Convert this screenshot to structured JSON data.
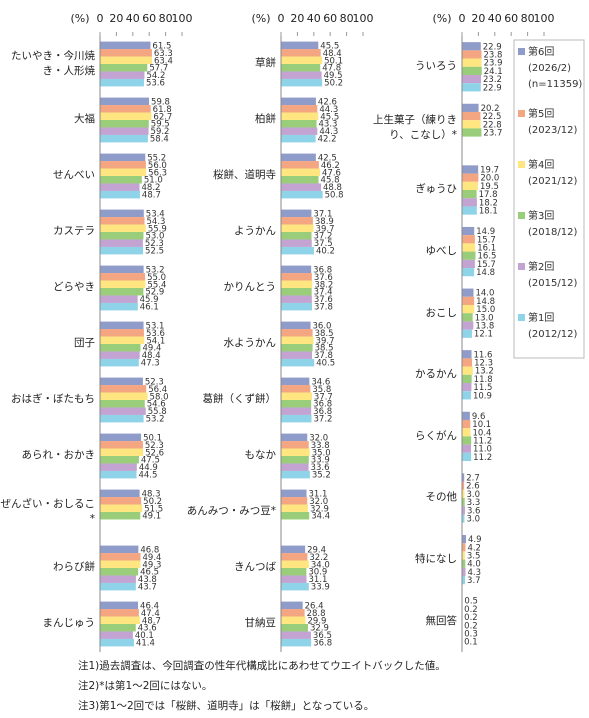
{
  "chart_data": [
    {
      "type": "bar",
      "orientation": "horizontal",
      "unit": "(%)",
      "xlim": [
        0,
        100
      ],
      "xticks": [
        0,
        20,
        40,
        60,
        80,
        100
      ],
      "categories": [
        "たいやき・今川焼き・人形焼",
        "大福",
        "せんべい",
        "カステラ",
        "どらやき",
        "団子",
        "おはぎ・ぼたもち",
        "あられ・おかき",
        "ぜんざい・おしるこ*",
        "わらび餅",
        "まんじゅう"
      ],
      "series": [
        {
          "color": "#8f9bc8",
          "values": [
            61.5,
            59.8,
            55.2,
            53.4,
            53.2,
            53.1,
            52.3,
            50.1,
            48.3,
            46.8,
            46.4
          ],
          "value_labels": [
            "61.5",
            "59.8",
            "55.2",
            "53.4",
            "53.2",
            "53.1",
            "52.3",
            "50.1",
            "48.3",
            "46.8",
            "46.4"
          ]
        },
        {
          "color": "#f4a582",
          "values": [
            63.3,
            61.8,
            56.0,
            54.3,
            55.0,
            53.6,
            56.4,
            52.3,
            50.2,
            49.4,
            47.4
          ],
          "value_labels": [
            "63.3",
            "61.8",
            "56.0",
            "54.3",
            "55.0",
            "53.6",
            "56.4",
            "52.3",
            "50.2",
            "49.4",
            "47.4"
          ]
        },
        {
          "color": "#ffe680",
          "values": [
            63.4,
            62.7,
            56.3,
            55.9,
            55.4,
            54.1,
            58.0,
            52.6,
            51.5,
            49.3,
            48.7
          ],
          "value_labels": [
            "63.4",
            "62.7",
            "56.3",
            "55.9",
            "55.4",
            "54.1",
            "58.0",
            "52.6",
            "51.5",
            "49.3",
            "48.7"
          ]
        },
        {
          "color": "#9acd7a",
          "values": [
            57.7,
            59.5,
            51.0,
            53.0,
            52.9,
            49.4,
            54.6,
            47.5,
            49.1,
            46.5,
            43.6
          ],
          "value_labels": [
            "57.7",
            "59.5",
            "51.0",
            "53.0",
            "52.9",
            "49.4",
            "54.6",
            "47.5",
            "49.1",
            "46.5",
            "43.6"
          ]
        },
        {
          "color": "#c3a3d1",
          "values": [
            54.2,
            59.2,
            48.2,
            52.3,
            45.9,
            48.4,
            55.8,
            44.9,
            null,
            43.8,
            40.1
          ],
          "value_labels": [
            "54.2",
            "59.2",
            "48.2",
            "52.3",
            "45.9",
            "48.4",
            "55.8",
            "44.9",
            null,
            "43.8",
            "40.1"
          ]
        },
        {
          "color": "#8fd3e8",
          "values": [
            53.6,
            58.4,
            48.7,
            52.5,
            46.1,
            47.3,
            53.2,
            44.5,
            null,
            43.7,
            41.4
          ],
          "value_labels": [
            "53.6",
            "58.4",
            "48.7",
            "52.5",
            "46.1",
            "47.3",
            "53.2",
            "44.5",
            null,
            "43.7",
            "41.4"
          ]
        }
      ]
    },
    {
      "type": "bar",
      "orientation": "horizontal",
      "unit": "(%)",
      "xlim": [
        0,
        100
      ],
      "xticks": [
        0,
        20,
        40,
        60,
        80,
        100
      ],
      "categories": [
        "草餅",
        "柏餅",
        "桜餅、道明寺",
        "ようかん",
        "かりんとう",
        "水ようかん",
        "葛餅（くず餅）",
        "もなか",
        "あんみつ・みつ豆*",
        "きんつば",
        "甘納豆"
      ],
      "series": [
        {
          "color": "#8f9bc8",
          "values": [
            45.5,
            42.6,
            42.5,
            37.1,
            36.8,
            36.0,
            34.6,
            32.0,
            31.1,
            29.4,
            26.4
          ],
          "value_labels": [
            "45.5",
            "42.6",
            "42.5",
            "37.1",
            "36.8",
            "36.0",
            "34.6",
            "32.0",
            "31.1",
            "29.4",
            "26.4"
          ]
        },
        {
          "color": "#f4a582",
          "values": [
            48.4,
            44.3,
            46.2,
            38.9,
            37.6,
            38.5,
            35.8,
            33.8,
            32.0,
            32.2,
            28.8
          ],
          "value_labels": [
            "48.4",
            "44.3",
            "46.2",
            "38.9",
            "37.6",
            "38.5",
            "35.8",
            "33.8",
            "32.0",
            "32.2",
            "28.8"
          ]
        },
        {
          "color": "#ffe680",
          "values": [
            50.1,
            45.5,
            47.6,
            39.7,
            38.2,
            39.7,
            37.7,
            35.0,
            32.9,
            34.0,
            29.9
          ],
          "value_labels": [
            "50.1",
            "45.5",
            "47.6",
            "39.7",
            "38.2",
            "39.7",
            "37.7",
            "35.0",
            "32.9",
            "34.0",
            "29.9"
          ]
        },
        {
          "color": "#9acd7a",
          "values": [
            47.8,
            43.3,
            45.8,
            37.2,
            37.4,
            38.5,
            36.8,
            33.9,
            34.4,
            30.9,
            32.9
          ],
          "value_labels": [
            "47.8",
            "43.3",
            "45.8",
            "37.2",
            "37.4",
            "38.5",
            "36.8",
            "33.9",
            "34.4",
            "30.9",
            "32.9"
          ]
        },
        {
          "color": "#c3a3d1",
          "values": [
            49.5,
            44.3,
            48.8,
            37.5,
            37.6,
            37.8,
            36.8,
            33.6,
            null,
            31.1,
            36.5
          ],
          "value_labels": [
            "49.5",
            "44.3",
            "48.8",
            "37.5",
            "37.6",
            "37.8",
            "36.8",
            "33.6",
            null,
            "31.1",
            "36.5"
          ]
        },
        {
          "color": "#8fd3e8",
          "values": [
            50.2,
            42.2,
            50.8,
            40.2,
            37.8,
            40.5,
            37.2,
            35.2,
            null,
            33.9,
            36.8
          ],
          "value_labels": [
            "50.2",
            "42.2",
            "50.8",
            "40.2",
            "37.8",
            "40.5",
            "37.2",
            "35.2",
            null,
            "33.9",
            "36.8"
          ]
        }
      ]
    },
    {
      "type": "bar",
      "orientation": "horizontal",
      "unit": "(%)",
      "xlim": [
        0,
        100
      ],
      "xticks": [
        0,
        20,
        40,
        60,
        80,
        100
      ],
      "categories": [
        "ういろう",
        "上生菓子（練りきり、こなし）*",
        "ぎゅうひ",
        "ゆべし",
        "おこし",
        "かるかん",
        "らくがん",
        "その他",
        "特になし",
        "無回答"
      ],
      "series": [
        {
          "name": "第6回",
          "period": "(2026/2)",
          "n": "(n=11359)",
          "color": "#8f9bc8",
          "values": [
            22.9,
            20.2,
            19.7,
            14.9,
            14.0,
            11.6,
            9.6,
            2.7,
            4.9,
            0.5
          ],
          "value_labels": [
            "22.9",
            "20.2",
            "19.7",
            "14.9",
            "14.0",
            "11.6",
            "9.6",
            "2.7",
            "4.9",
            "0.5"
          ]
        },
        {
          "name": "第5回",
          "period": "(2023/12)",
          "color": "#f4a582",
          "values": [
            23.8,
            22.5,
            20.0,
            15.7,
            14.8,
            12.3,
            10.1,
            2.6,
            4.2,
            0.2
          ],
          "value_labels": [
            "23.8",
            "22.5",
            "20.0",
            "15.7",
            "14.8",
            "12.3",
            "10.1",
            "2.6",
            "4.2",
            "0.2"
          ]
        },
        {
          "name": "第4回",
          "period": "(2021/12)",
          "color": "#ffe680",
          "values": [
            23.9,
            22.8,
            19.5,
            16.1,
            15.0,
            13.2,
            10.4,
            3.0,
            3.5,
            0.2
          ],
          "value_labels": [
            "23.9",
            "22.8",
            "19.5",
            "16.1",
            "15.0",
            "13.2",
            "10.4",
            "3.0",
            "3.5",
            "0.2"
          ]
        },
        {
          "name": "第3回",
          "period": "(2018/12)",
          "color": "#9acd7a",
          "values": [
            24.1,
            23.7,
            17.8,
            16.5,
            13.0,
            11.8,
            11.2,
            3.3,
            4.0,
            0.2
          ],
          "value_labels": [
            "24.1",
            "23.7",
            "17.8",
            "16.5",
            "13.0",
            "11.8",
            "11.2",
            "3.3",
            "4.0",
            "0.2"
          ]
        },
        {
          "name": "第2回",
          "period": "(2015/12)",
          "color": "#c3a3d1",
          "values": [
            23.2,
            null,
            18.2,
            15.7,
            13.8,
            11.5,
            11.0,
            3.6,
            4.3,
            0.3
          ],
          "value_labels": [
            "23.2",
            null,
            "18.2",
            "15.7",
            "13.8",
            "11.5",
            "11.0",
            "3.6",
            "4.3",
            "0.3"
          ]
        },
        {
          "name": "第1回",
          "period": "(2012/12)",
          "color": "#8fd3e8",
          "values": [
            22.9,
            null,
            18.1,
            14.8,
            12.1,
            10.9,
            11.2,
            3.0,
            3.7,
            0.1
          ],
          "value_labels": [
            "22.9",
            null,
            "18.1",
            "14.8",
            "12.1",
            "10.9",
            "11.2",
            "3.0",
            "3.7",
            "0.1"
          ]
        }
      ]
    }
  ],
  "notes": [
    "注1)過去調査は、今回調査の性年代構成比にあわせてウエイトバックした値。",
    "注2)*は第1～2回にはない。",
    "注3)第1～2回では「桜餅、道明寺」は「桜餅」となっている。"
  ]
}
